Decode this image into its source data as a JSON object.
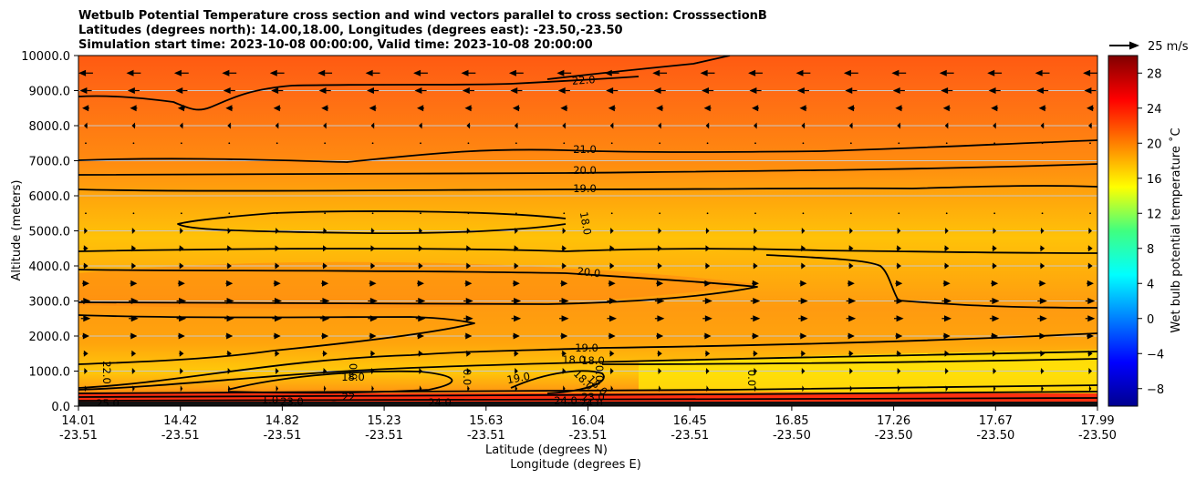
{
  "chart_data": {
    "type": "contourf-with-vectors",
    "title_lines": [
      "Wetbulb Potential Temperature cross section and wind vectors parallel to cross section: CrosssectionB",
      "Latitudes (degrees north): 14.00,18.00, Longitudes (degrees east): -23.50,-23.50",
      "Simulation start time: 2023-10-08 00:00:00, Valid time: 2023-10-08 20:00:00"
    ],
    "xlabel_lat": "Latitude (degrees N)",
    "xlabel_lon": "Longitude (degrees E)",
    "ylabel": "Altitude (meters)",
    "ylim": [
      0,
      10000
    ],
    "x_ticks": [
      {
        "lat": "14.01",
        "lon": "-23.51"
      },
      {
        "lat": "14.42",
        "lon": "-23.51"
      },
      {
        "lat": "14.82",
        "lon": "-23.51"
      },
      {
        "lat": "15.23",
        "lon": "-23.51"
      },
      {
        "lat": "15.63",
        "lon": "-23.51"
      },
      {
        "lat": "16.04",
        "lon": "-23.51"
      },
      {
        "lat": "16.45",
        "lon": "-23.51"
      },
      {
        "lat": "16.85",
        "lon": "-23.50"
      },
      {
        "lat": "17.26",
        "lon": "-23.50"
      },
      {
        "lat": "17.67",
        "lon": "-23.50"
      },
      {
        "lat": "17.99",
        "lon": "-23.50"
      }
    ],
    "y_ticks": [
      "0.0",
      "1000.0",
      "2000.0",
      "3000.0",
      "4000.0",
      "5000.0",
      "6000.0",
      "7000.0",
      "8000.0",
      "9000.0",
      "10000.0"
    ],
    "y_tick_values": [
      0,
      1000,
      2000,
      3000,
      4000,
      5000,
      6000,
      7000,
      8000,
      9000,
      10000
    ],
    "colorbar": {
      "label": "Wet bulb potential temperature ˚C",
      "min": -10,
      "max": 30,
      "ticks": [
        "28",
        "24",
        "20",
        "16",
        "12",
        "8",
        "4",
        "0",
        "−4",
        "−8"
      ],
      "tick_values": [
        28,
        24,
        20,
        16,
        12,
        8,
        4,
        0,
        -4,
        -8
      ]
    },
    "quiver_key": {
      "label": "25 m/s",
      "speed": 25
    },
    "contour_levels": [
      "22.0",
      "21.0",
      "20.0",
      "19.0",
      "18.0",
      "20.0",
      "19.0",
      "18.0",
      "18.0",
      "19.0",
      "22.0",
      "25.0"
    ],
    "annotations": [
      "18.0",
      "0.0",
      "0.0",
      "0.0",
      "0.0",
      "1.0",
      "23.0",
      "22",
      "24.0",
      "18.0",
      "18.0",
      "24.0",
      "23.0",
      "24.0"
    ],
    "wind_rows": [
      {
        "altitude": 9500,
        "u": -12
      },
      {
        "altitude": 9000,
        "u": -10
      },
      {
        "altitude": 8500,
        "u": -6
      },
      {
        "altitude": 8000,
        "u": -3
      },
      {
        "altitude": 7500,
        "u": -1
      },
      {
        "altitude": 5500,
        "u": 1
      },
      {
        "altitude": 5000,
        "u": 3
      },
      {
        "altitude": 4500,
        "u": 4
      },
      {
        "altitude": 4000,
        "u": 4
      },
      {
        "altitude": 3500,
        "u": 6
      },
      {
        "altitude": 3000,
        "u": 8
      },
      {
        "altitude": 2500,
        "u": 8
      },
      {
        "altitude": 2000,
        "u": 6
      },
      {
        "altitude": 1500,
        "u": 4
      },
      {
        "altitude": 1000,
        "u": 3
      },
      {
        "altitude": 500,
        "u": 2
      }
    ]
  }
}
